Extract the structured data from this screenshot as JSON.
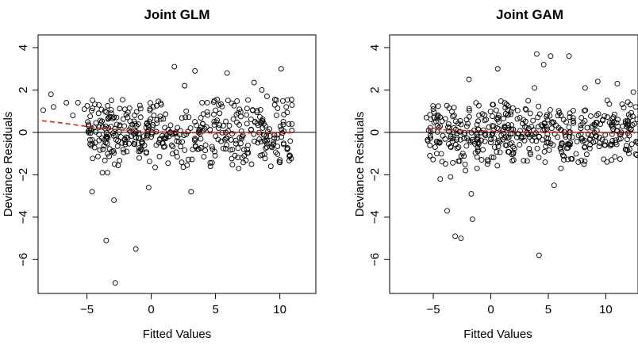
{
  "chart_data": [
    {
      "type": "scatter",
      "title": "Joint GLM",
      "xlabel": "Fitted Values",
      "ylabel": "Deviance Residuals",
      "xlim": [
        -8.8,
        12.8
      ],
      "ylim": [
        -7.6,
        4.6
      ],
      "xticks": [
        -5,
        0,
        5,
        10
      ],
      "xtick_labels": [
        "−5",
        "0",
        "5",
        "10"
      ],
      "yticks": [
        -6,
        -4,
        -2,
        0,
        2,
        4
      ],
      "ytick_labels": [
        "−6",
        "−4",
        "−2",
        "0",
        "2",
        "4"
      ],
      "reference_line_y": 0,
      "smooth_x": [
        -8.5,
        -7,
        -5.5,
        -4,
        -2.5,
        -1,
        0.5,
        2,
        3.5,
        5,
        6.5,
        8,
        9.5,
        11
      ],
      "smooth_y": [
        0.55,
        0.45,
        0.32,
        0.2,
        0.12,
        0.07,
        0.03,
        0.0,
        -0.02,
        -0.03,
        -0.03,
        -0.03,
        -0.03,
        -0.02
      ],
      "points": [
        [
          -8.4,
          1.05
        ],
        [
          -7.8,
          1.8
        ],
        [
          -7.6,
          1.2
        ],
        [
          -6.6,
          1.4
        ],
        [
          -6.1,
          0.8
        ],
        [
          -5.7,
          1.4
        ],
        [
          -5.2,
          1.1
        ],
        [
          -4.9,
          0.05
        ],
        [
          -4.7,
          0.1
        ],
        [
          -4.3,
          0.45
        ],
        [
          -4.1,
          0.9
        ],
        [
          -3.6,
          1.0
        ],
        [
          -3.1,
          0.9
        ],
        [
          -2.7,
          0.7
        ],
        [
          -4.6,
          -2.8
        ],
        [
          -3.8,
          -1.9
        ],
        [
          -3.4,
          -1.9
        ],
        [
          -3.5,
          -5.1
        ],
        [
          -2.9,
          -3.2
        ],
        [
          -2.8,
          -7.1
        ],
        [
          -1.2,
          -5.5
        ],
        [
          -0.2,
          -2.6
        ],
        [
          1.8,
          3.1
        ],
        [
          2.6,
          2.2
        ],
        [
          3.4,
          2.9
        ],
        [
          5.9,
          2.8
        ],
        [
          8.0,
          2.35
        ],
        [
          8.6,
          2.0
        ],
        [
          10.1,
          3.0
        ],
        [
          9.0,
          1.7
        ],
        [
          9.6,
          1.3
        ],
        [
          10.5,
          1.2
        ],
        [
          3.1,
          -2.8
        ],
        [
          4.6,
          -1.6
        ],
        [
          6.8,
          -1.7
        ],
        [
          7.8,
          -1.5
        ],
        [
          9.3,
          -1.6
        ],
        [
          10.0,
          -1.3
        ],
        [
          10.8,
          -1.1
        ]
      ]
    },
    {
      "type": "scatter",
      "title": "Joint GAM",
      "xlabel": "Fitted Values",
      "ylabel": "Deviance Residuals",
      "xlim": [
        -8.8,
        12.8
      ],
      "ylim": [
        -7.6,
        4.6
      ],
      "xticks": [
        -5,
        0,
        5,
        10
      ],
      "xtick_labels": [
        "−5",
        "0",
        "5",
        "10"
      ],
      "yticks": [
        -6,
        -4,
        -2,
        0,
        2,
        4
      ],
      "ytick_labels": [
        "−6",
        "−4",
        "−2",
        "0",
        "2",
        "4"
      ],
      "reference_line_y": 0,
      "smooth_x": [
        -5.5,
        -4,
        -2.5,
        -1,
        0.5,
        2,
        3.5,
        5,
        6.5,
        8,
        9.5,
        11,
        12.5
      ],
      "smooth_y": [
        0.15,
        0.12,
        0.09,
        0.07,
        0.05,
        0.03,
        0.02,
        0.01,
        0.0,
        -0.01,
        -0.02,
        -0.03,
        -0.04
      ],
      "points": [
        [
          -5.6,
          0.7
        ],
        [
          -5.0,
          1.1
        ],
        [
          -4.6,
          0.8
        ],
        [
          -4.4,
          0.3
        ],
        [
          -5.3,
          -1.1
        ],
        [
          -4.7,
          -1.0
        ],
        [
          -4.4,
          -2.2
        ],
        [
          -3.8,
          -3.7
        ],
        [
          -3.5,
          -2.1
        ],
        [
          -3.1,
          -4.9
        ],
        [
          -2.6,
          -5.0
        ],
        [
          -2.2,
          -1.8
        ],
        [
          -1.7,
          -2.9
        ],
        [
          -1.6,
          -4.1
        ],
        [
          -1.2,
          -1.7
        ],
        [
          -0.3,
          -1.3
        ],
        [
          -1.9,
          2.5
        ],
        [
          0.6,
          3.0
        ],
        [
          3.8,
          2.1
        ],
        [
          4.0,
          3.7
        ],
        [
          4.6,
          3.2
        ],
        [
          5.2,
          3.6
        ],
        [
          6.8,
          3.6
        ],
        [
          8.2,
          2.1
        ],
        [
          9.3,
          2.4
        ],
        [
          11.0,
          2.3
        ],
        [
          12.4,
          1.9
        ],
        [
          4.2,
          -5.8
        ],
        [
          5.5,
          -2.5
        ],
        [
          6.1,
          -1.7
        ],
        [
          8.1,
          -1.5
        ],
        [
          10.5,
          -1.3
        ]
      ]
    }
  ]
}
